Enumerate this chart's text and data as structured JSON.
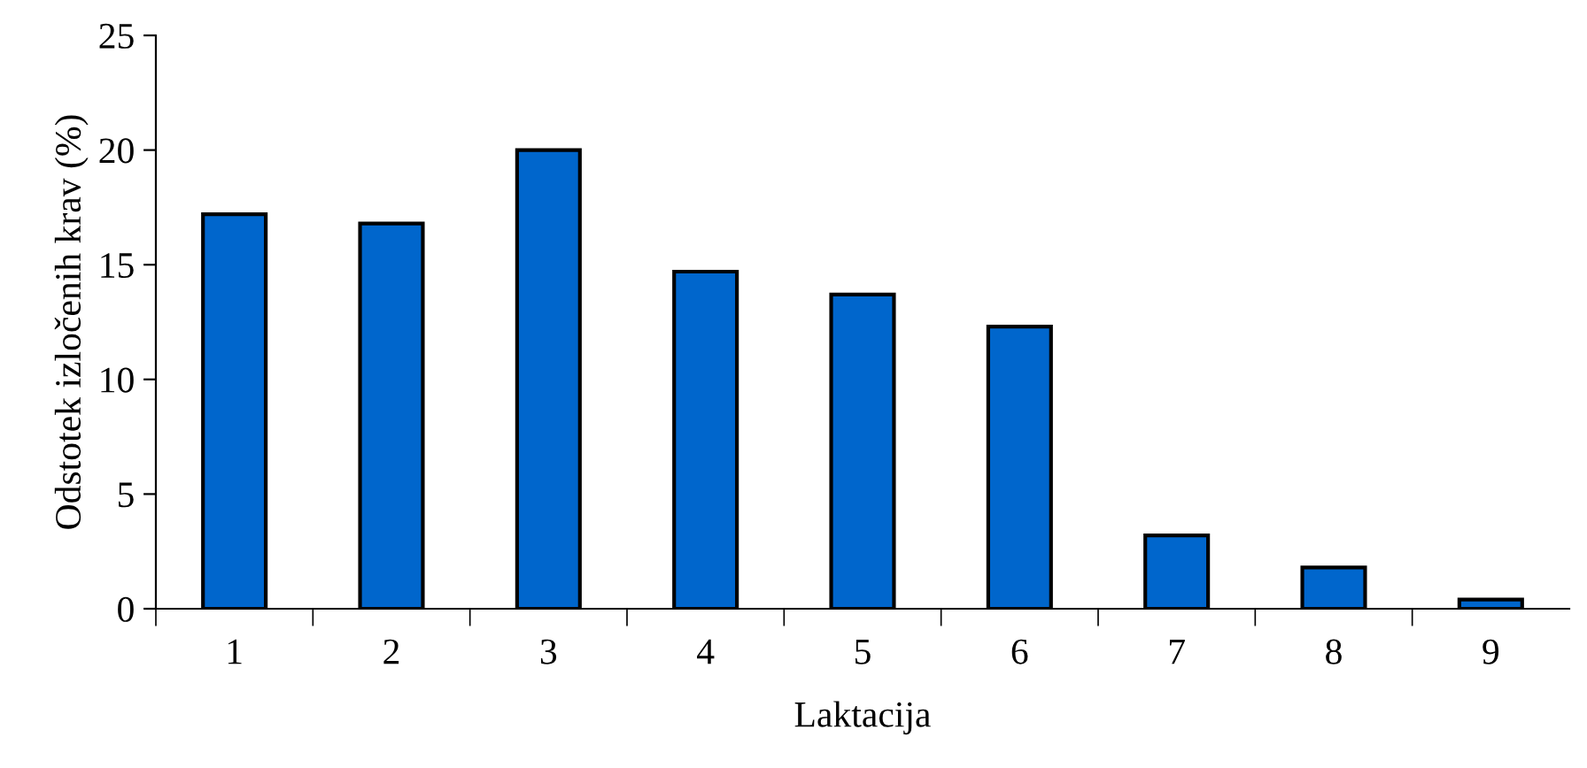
{
  "chart_data": {
    "type": "bar",
    "xlabel": "Laktacija",
    "ylabel": "Odstotek izločenih krav (%)",
    "categories": [
      "1",
      "2",
      "3",
      "4",
      "5",
      "6",
      "7",
      "8",
      "9"
    ],
    "values": [
      17.2,
      16.8,
      20.0,
      14.7,
      13.7,
      12.3,
      3.2,
      1.8,
      0.4
    ],
    "color": "#0066cc",
    "ylim": [
      0,
      25
    ],
    "yticks": [
      0,
      5,
      10,
      15,
      20,
      25
    ],
    "grid": false,
    "legend": false
  }
}
